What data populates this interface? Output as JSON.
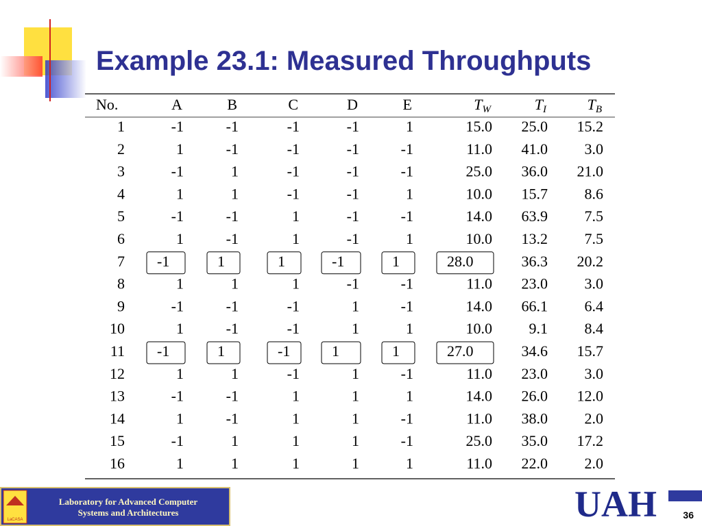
{
  "header": {
    "title": "Example 23.1: Measured Throughputs"
  },
  "table": {
    "headers": [
      "No.",
      "A",
      "B",
      "C",
      "D",
      "E",
      {
        "base": "T",
        "sub": "W"
      },
      {
        "base": "T",
        "sub": "I"
      },
      {
        "base": "T",
        "sub": "B"
      }
    ],
    "rows": [
      {
        "cells": [
          "1",
          "-1",
          "-1",
          "-1",
          "-1",
          "1",
          "15.0",
          "25.0",
          "15.2"
        ]
      },
      {
        "cells": [
          "2",
          "1",
          "-1",
          "-1",
          "-1",
          "-1",
          "11.0",
          "41.0",
          "3.0"
        ]
      },
      {
        "cells": [
          "3",
          "-1",
          "1",
          "-1",
          "-1",
          "-1",
          "25.0",
          "36.0",
          "21.0"
        ]
      },
      {
        "cells": [
          "4",
          "1",
          "1",
          "-1",
          "-1",
          "1",
          "10.0",
          "15.7",
          "8.6"
        ]
      },
      {
        "cells": [
          "5",
          "-1",
          "-1",
          "1",
          "-1",
          "-1",
          "14.0",
          "63.9",
          "7.5"
        ]
      },
      {
        "cells": [
          "6",
          "1",
          "-1",
          "1",
          "-1",
          "1",
          "10.0",
          "13.2",
          "7.5"
        ]
      },
      {
        "cells": [
          "7",
          "-1",
          "1",
          "1",
          "-1",
          "1",
          "28.0",
          "36.3",
          "20.2"
        ],
        "boxed": true
      },
      {
        "cells": [
          "8",
          "1",
          "1",
          "1",
          "-1",
          "-1",
          "11.0",
          "23.0",
          "3.0"
        ]
      },
      {
        "cells": [
          "9",
          "-1",
          "-1",
          "-1",
          "1",
          "-1",
          "14.0",
          "66.1",
          "6.4"
        ]
      },
      {
        "cells": [
          "10",
          "1",
          "-1",
          "-1",
          "1",
          "1",
          "10.0",
          "9.1",
          "8.4"
        ]
      },
      {
        "cells": [
          "11",
          "-1",
          "1",
          "-1",
          "1",
          "1",
          "27.0",
          "34.6",
          "15.7"
        ],
        "boxed": true
      },
      {
        "cells": [
          "12",
          "1",
          "1",
          "-1",
          "1",
          "-1",
          "11.0",
          "23.0",
          "3.0"
        ]
      },
      {
        "cells": [
          "13",
          "-1",
          "-1",
          "1",
          "1",
          "1",
          "14.0",
          "26.0",
          "12.0"
        ]
      },
      {
        "cells": [
          "14",
          "1",
          "-1",
          "1",
          "1",
          "-1",
          "11.0",
          "38.0",
          "2.0"
        ]
      },
      {
        "cells": [
          "15",
          "-1",
          "1",
          "1",
          "1",
          "-1",
          "25.0",
          "35.0",
          "17.2"
        ]
      },
      {
        "cells": [
          "16",
          "1",
          "1",
          "1",
          "1",
          "1",
          "11.0",
          "22.0",
          "2.0"
        ]
      }
    ]
  },
  "footer": {
    "lab_line1": "Laboratory for Advanced Computer",
    "lab_line2": "Systems and Architectures",
    "logo": "LaCASA",
    "university": "UAH",
    "page": "36"
  }
}
